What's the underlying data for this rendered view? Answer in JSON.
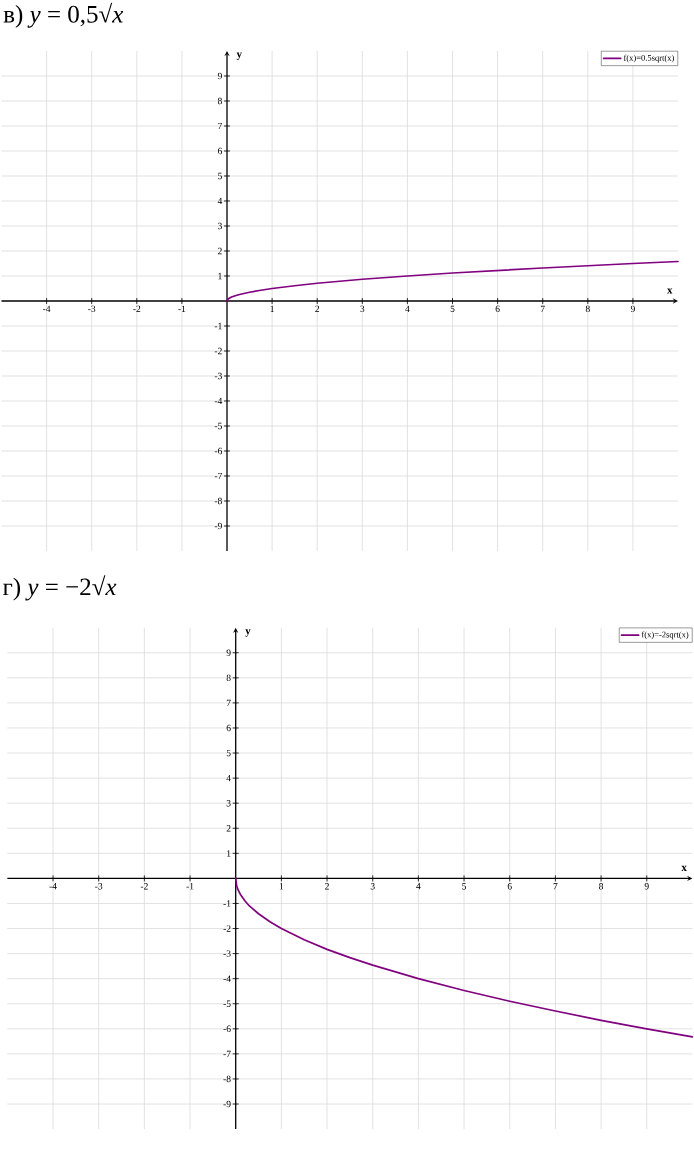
{
  "chart_data": [
    {
      "type": "line",
      "title": "в) *y* = 0,5√*x*",
      "xlabel": "x",
      "ylabel": "y",
      "xlim": [
        -5,
        10
      ],
      "ylim": [
        -10,
        10
      ],
      "xticks": [
        -4,
        -3,
        -2,
        -1,
        1,
        2,
        3,
        4,
        5,
        6,
        7,
        8,
        9
      ],
      "yticks": [
        -9,
        -8,
        -7,
        -6,
        -5,
        -4,
        -3,
        -2,
        -1,
        1,
        2,
        3,
        4,
        5,
        6,
        7,
        8,
        9
      ],
      "grid": true,
      "legend": "top right",
      "series": [
        {
          "name": "f(x)=0.5sqrt(x)",
          "color": "#800080",
          "x": [
            0,
            0.02,
            0.05,
            0.1,
            0.2,
            0.3,
            0.5,
            0.75,
            1,
            1.5,
            2,
            2.5,
            3,
            4,
            5,
            6,
            7,
            8,
            9,
            10
          ],
          "values": [
            0,
            0.07,
            0.11,
            0.16,
            0.22,
            0.27,
            0.35,
            0.43,
            0.5,
            0.61,
            0.71,
            0.79,
            0.87,
            1,
            1.12,
            1.22,
            1.32,
            1.41,
            1.5,
            1.58
          ]
        }
      ]
    },
    {
      "type": "line",
      "title": "г) *y* = −2√*x*",
      "xlabel": "x",
      "ylabel": "y",
      "xlim": [
        -5,
        10
      ],
      "ylim": [
        -10,
        10
      ],
      "xticks": [
        -4,
        -3,
        -2,
        -1,
        1,
        2,
        3,
        4,
        5,
        6,
        7,
        8,
        9
      ],
      "yticks": [
        -9,
        -8,
        -7,
        -6,
        -5,
        -4,
        -3,
        -2,
        -1,
        1,
        2,
        3,
        4,
        5,
        6,
        7,
        8,
        9
      ],
      "grid": true,
      "legend": "top right",
      "series": [
        {
          "name": "f(x)=-2sqrt(x)",
          "color": "#800080",
          "x": [
            0,
            0.02,
            0.05,
            0.1,
            0.2,
            0.3,
            0.5,
            0.75,
            1,
            1.5,
            2,
            2.5,
            3,
            4,
            5,
            6,
            7,
            8,
            9,
            10
          ],
          "values": [
            0,
            -0.28,
            -0.45,
            -0.63,
            -0.89,
            -1.1,
            -1.41,
            -1.73,
            -2,
            -2.45,
            -2.83,
            -3.16,
            -3.46,
            -4,
            -4.47,
            -4.9,
            -5.29,
            -5.66,
            -6,
            -6.32
          ]
        }
      ]
    }
  ]
}
